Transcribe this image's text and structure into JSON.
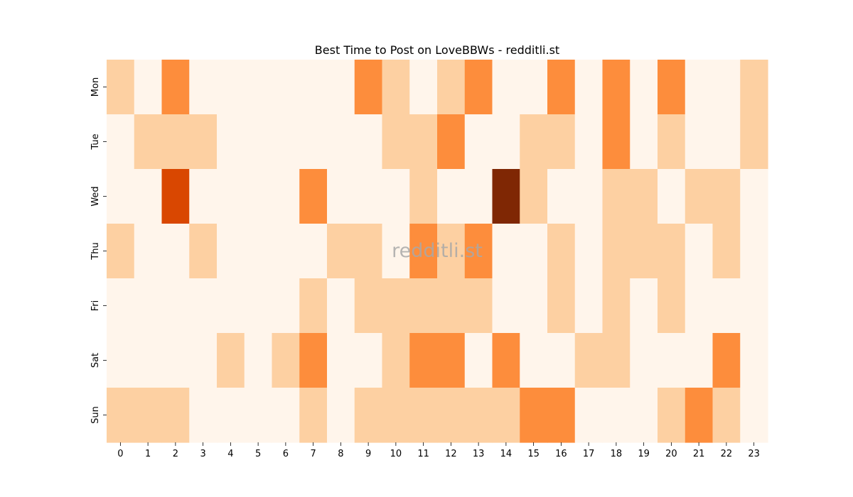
{
  "chart_data": {
    "type": "heatmap",
    "title": "Best Time to Post on LoveBBWs - redditli.st",
    "watermark": "redditli.st",
    "xlabel": "",
    "ylabel": "",
    "x_categories": [
      "0",
      "1",
      "2",
      "3",
      "4",
      "5",
      "6",
      "7",
      "8",
      "9",
      "10",
      "11",
      "12",
      "13",
      "14",
      "15",
      "16",
      "17",
      "18",
      "19",
      "20",
      "21",
      "22",
      "23"
    ],
    "y_categories": [
      "Mon",
      "Tue",
      "Wed",
      "Thu",
      "Fri",
      "Sat",
      "Sun"
    ],
    "values": [
      [
        1,
        0,
        2,
        0,
        0,
        0,
        0,
        0,
        0,
        2,
        1,
        0,
        1,
        2,
        0,
        0,
        2,
        0,
        2,
        0,
        2,
        0,
        0,
        1
      ],
      [
        0,
        1,
        1,
        1,
        0,
        0,
        0,
        0,
        0,
        0,
        1,
        1,
        2,
        0,
        0,
        1,
        1,
        0,
        2,
        0,
        1,
        0,
        0,
        1
      ],
      [
        0,
        0,
        3,
        0,
        0,
        0,
        0,
        2,
        0,
        0,
        0,
        1,
        0,
        0,
        4,
        1,
        0,
        0,
        1,
        1,
        0,
        1,
        1,
        0
      ],
      [
        1,
        0,
        0,
        1,
        0,
        0,
        0,
        0,
        1,
        1,
        0,
        2,
        1,
        2,
        0,
        0,
        1,
        0,
        1,
        1,
        1,
        0,
        1,
        0
      ],
      [
        0,
        0,
        0,
        0,
        0,
        0,
        0,
        1,
        0,
        1,
        1,
        1,
        1,
        1,
        0,
        0,
        1,
        0,
        1,
        0,
        1,
        0,
        0,
        0
      ],
      [
        0,
        0,
        0,
        0,
        1,
        0,
        1,
        2,
        0,
        0,
        1,
        2,
        2,
        0,
        2,
        0,
        0,
        1,
        1,
        0,
        0,
        0,
        2,
        0
      ],
      [
        1,
        1,
        1,
        0,
        0,
        0,
        0,
        1,
        0,
        1,
        1,
        1,
        1,
        1,
        1,
        2,
        2,
        0,
        0,
        0,
        1,
        2,
        1,
        0
      ]
    ],
    "value_range": [
      0,
      4
    ],
    "colors": [
      "#fff5eb",
      "#fdd0a2",
      "#fd8d3c",
      "#d94701",
      "#7f2704"
    ],
    "colorbar": false,
    "grid": false
  }
}
